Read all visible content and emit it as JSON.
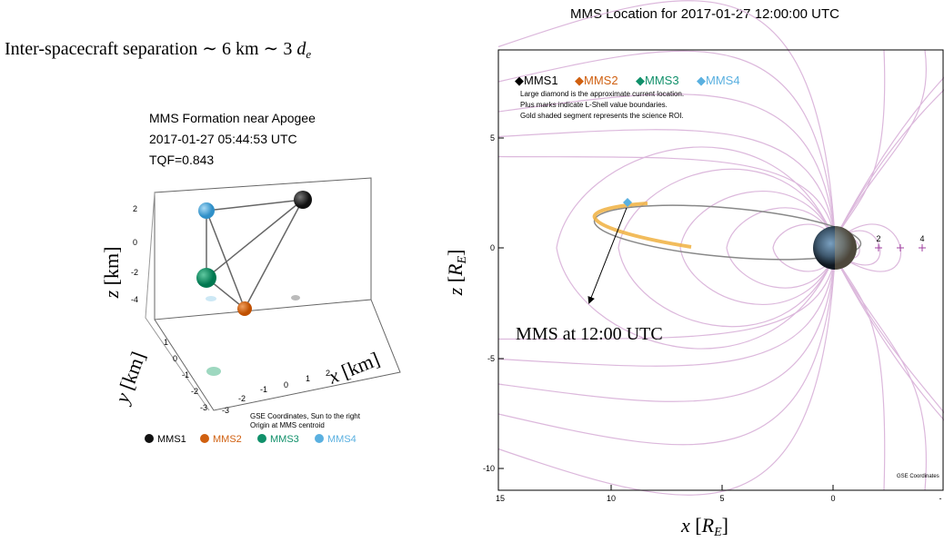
{
  "caption": {
    "text": "Inter-spacecraft separation ∼ 6 km ∼ 3 ",
    "symbol": "d",
    "subscript": "e"
  },
  "left_panel": {
    "title_lines": [
      "MMS Formation near Apogee",
      "2017-01-27 05:44:53 UTC",
      "TQF=0.843"
    ],
    "z_label": {
      "symbol": "z",
      "unit": "[km]"
    },
    "y_label": {
      "symbol": "y",
      "unit": "[km]"
    },
    "x_label": {
      "symbol": "x",
      "unit": "[km]"
    },
    "z_ticks": [
      "2",
      "0",
      "-2",
      "-4"
    ],
    "y_ticks": [
      "1",
      "0",
      "-1",
      "-2",
      "-3"
    ],
    "x_ticks": [
      "-3",
      "-2",
      "-1",
      "0",
      "1",
      "2"
    ],
    "notes": [
      "GSE Coordinates, Sun to the right",
      "Origin at MMS centroid"
    ],
    "legend": [
      "MMS1",
      "MMS2",
      "MMS3",
      "MMS4"
    ]
  },
  "right_panel": {
    "title": "MMS Location for 2017-01-27 12:00:00 UTC",
    "legend": [
      "MMS1",
      "MMS2",
      "MMS3",
      "MMS4"
    ],
    "notes": [
      "Large diamond is the approximate current location.",
      "Plus marks indicate L-Shell value boundaries.",
      "Gold shaded segment represents the science ROI."
    ],
    "y_ticks": [
      "5",
      "0",
      "-5",
      "-10"
    ],
    "x_ticks": [
      "15",
      "10",
      "5",
      "0",
      "-"
    ],
    "lshell_labels": [
      "2",
      "4"
    ],
    "coords_note": "GSE Coordinates",
    "annotation": "MMS at 12:00 UTC",
    "z_label": {
      "symbol": "z",
      "unit_open": "[",
      "unit": "R",
      "unit_sub": "E",
      "unit_close": "]"
    },
    "x_label": {
      "symbol": "x",
      "unit_open": "[",
      "unit": "R",
      "unit_sub": "E",
      "unit_close": "]"
    }
  }
}
